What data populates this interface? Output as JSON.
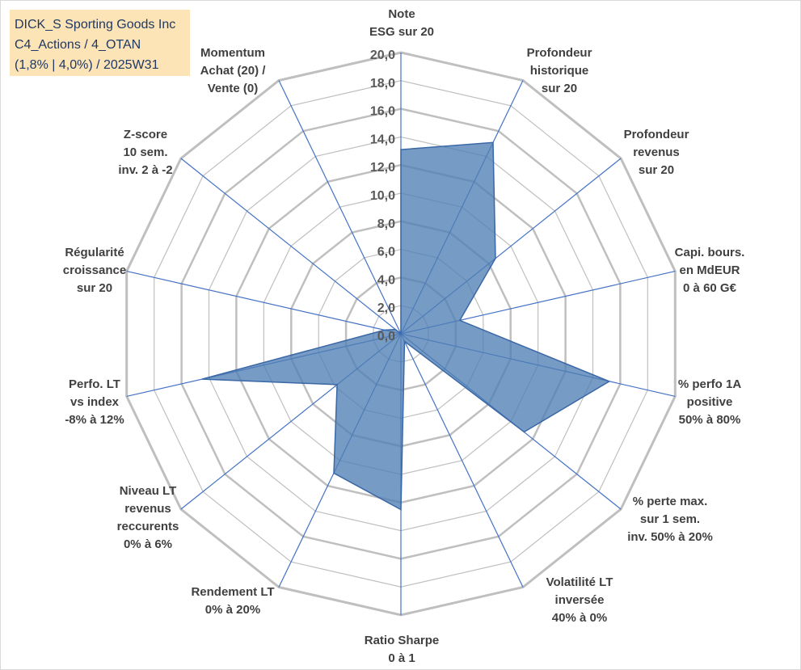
{
  "title_lines": [
    "DICK_S Sporting Goods Inc",
    "C4_Actions / 4_OTAN",
    "(1,8% | 4,0%) / 2025W31"
  ],
  "colors": {
    "grid": "#bfbfbf",
    "spoke": "#4472c4",
    "fill": "#4f7fb5",
    "stroke": "#3a67a6",
    "title_bg": "#fce4b6",
    "title_text": "#1f3864"
  },
  "chart_data": {
    "type": "radar",
    "rmin": 0,
    "rmax": 20,
    "tick_step": 2,
    "ticks": [
      "0,0",
      "2,0",
      "4,0",
      "6,0",
      "8,0",
      "10,0",
      "12,0",
      "14,0",
      "16,0",
      "18,0",
      "20,0"
    ],
    "categories": [
      [
        "Note",
        "ESG sur 20"
      ],
      [
        "Profondeur",
        "historique",
        "sur 20"
      ],
      [
        "Profondeur",
        "revenus",
        "sur 20"
      ],
      [
        "Capi. bours.",
        "en MdEUR",
        "0 à 60 G€"
      ],
      [
        "% perfo 1A",
        "positive",
        "50% à 80%"
      ],
      [
        "% perte max.",
        "sur 1 sem.",
        "inv. 50% à 20%"
      ],
      [
        "Volatilité LT",
        "inversée",
        "40% à 0%"
      ],
      [
        "Ratio Sharpe",
        "0 à 1"
      ],
      [
        "Rendement LT",
        "0% à 20%"
      ],
      [
        "Niveau LT",
        "revenus",
        "reccurents",
        "0% à 6%"
      ],
      [
        "Perfo. LT",
        "vs index",
        "-8% à 12%"
      ],
      [
        "Régularité",
        "croissance",
        "sur 20"
      ],
      [
        "Z-score",
        "10 sem.",
        "inv. 2 à -2"
      ],
      [
        "Momentum",
        "Achat (20) /",
        "Vente (0)"
      ]
    ],
    "values": [
      13.1,
      15.1,
      8.6,
      4.3,
      15.2,
      11.2,
      0.6,
      12.5,
      11.0,
      5.8,
      14.5,
      1.2,
      0.5,
      0.0
    ],
    "grid": true
  }
}
